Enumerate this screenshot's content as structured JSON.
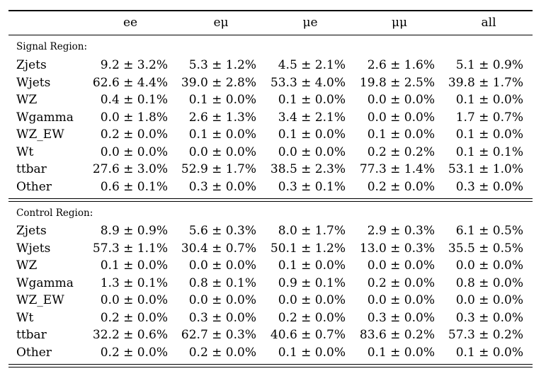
{
  "columns": [
    "",
    "ee",
    "eμ",
    "μe",
    "μμ",
    "all"
  ],
  "sections": [
    {
      "title": "Signal Region:",
      "rows": [
        {
          "label": "Zjets",
          "values": [
            "9.2 ± 3.2%",
            "5.3 ± 1.2%",
            "4.5 ± 2.1%",
            "2.6 ± 1.6%",
            "5.1 ± 0.9%"
          ]
        },
        {
          "label": "Wjets",
          "values": [
            "62.6 ± 4.4%",
            "39.0 ± 2.8%",
            "53.3 ± 4.0%",
            "19.8 ± 2.5%",
            "39.8 ± 1.7%"
          ]
        },
        {
          "label": "WZ",
          "values": [
            "0.4 ± 0.1%",
            "0.1 ± 0.0%",
            "0.1 ± 0.0%",
            "0.0 ± 0.0%",
            "0.1 ± 0.0%"
          ]
        },
        {
          "label": "Wgamma",
          "values": [
            "0.0 ± 1.8%",
            "2.6 ± 1.3%",
            "3.4 ± 2.1%",
            "0.0 ± 0.0%",
            "1.7 ± 0.7%"
          ]
        },
        {
          "label": "WZ_EW",
          "values": [
            "0.2 ± 0.0%",
            "0.1 ± 0.0%",
            "0.1 ± 0.0%",
            "0.1 ± 0.0%",
            "0.1 ± 0.0%"
          ]
        },
        {
          "label": "Wt",
          "values": [
            "0.0 ± 0.0%",
            "0.0 ± 0.0%",
            "0.0 ± 0.0%",
            "0.2 ± 0.2%",
            "0.1 ± 0.1%"
          ]
        },
        {
          "label": "ttbar",
          "values": [
            "27.6 ± 3.0%",
            "52.9 ± 1.7%",
            "38.5 ± 2.3%",
            "77.3 ± 1.4%",
            "53.1 ± 1.0%"
          ]
        },
        {
          "label": "Other",
          "values": [
            "0.6 ± 0.1%",
            "0.3 ± 0.0%",
            "0.3 ± 0.1%",
            "0.2 ± 0.0%",
            "0.3 ± 0.0%"
          ]
        }
      ]
    },
    {
      "title": "Control Region:",
      "rows": [
        {
          "label": "Zjets",
          "values": [
            "8.9 ± 0.9%",
            "5.6 ± 0.3%",
            "8.0 ± 1.7%",
            "2.9 ± 0.3%",
            "6.1 ± 0.5%"
          ]
        },
        {
          "label": "Wjets",
          "values": [
            "57.3 ± 1.1%",
            "30.4 ± 0.7%",
            "50.1 ± 1.2%",
            "13.0 ± 0.3%",
            "35.5 ± 0.5%"
          ]
        },
        {
          "label": "WZ",
          "values": [
            "0.1 ± 0.0%",
            "0.0 ± 0.0%",
            "0.1 ± 0.0%",
            "0.0 ± 0.0%",
            "0.0 ± 0.0%"
          ]
        },
        {
          "label": "Wgamma",
          "values": [
            "1.3 ± 0.1%",
            "0.8 ± 0.1%",
            "0.9 ± 0.1%",
            "0.2 ± 0.0%",
            "0.8 ± 0.0%"
          ]
        },
        {
          "label": "WZ_EW",
          "values": [
            "0.0 ± 0.0%",
            "0.0 ± 0.0%",
            "0.0 ± 0.0%",
            "0.0 ± 0.0%",
            "0.0 ± 0.0%"
          ]
        },
        {
          "label": "Wt",
          "values": [
            "0.2 ± 0.0%",
            "0.3 ± 0.0%",
            "0.2 ± 0.0%",
            "0.3 ± 0.0%",
            "0.3 ± 0.0%"
          ]
        },
        {
          "label": "ttbar",
          "values": [
            "32.2 ± 0.6%",
            "62.7 ± 0.3%",
            "40.6 ± 0.7%",
            "83.6 ± 0.2%",
            "57.3 ± 0.2%"
          ]
        },
        {
          "label": "Other",
          "values": [
            "0.2 ± 0.0%",
            "0.2 ± 0.0%",
            "0.1 ± 0.0%",
            "0.1 ± 0.0%",
            "0.1 ± 0.0%"
          ]
        }
      ]
    }
  ]
}
